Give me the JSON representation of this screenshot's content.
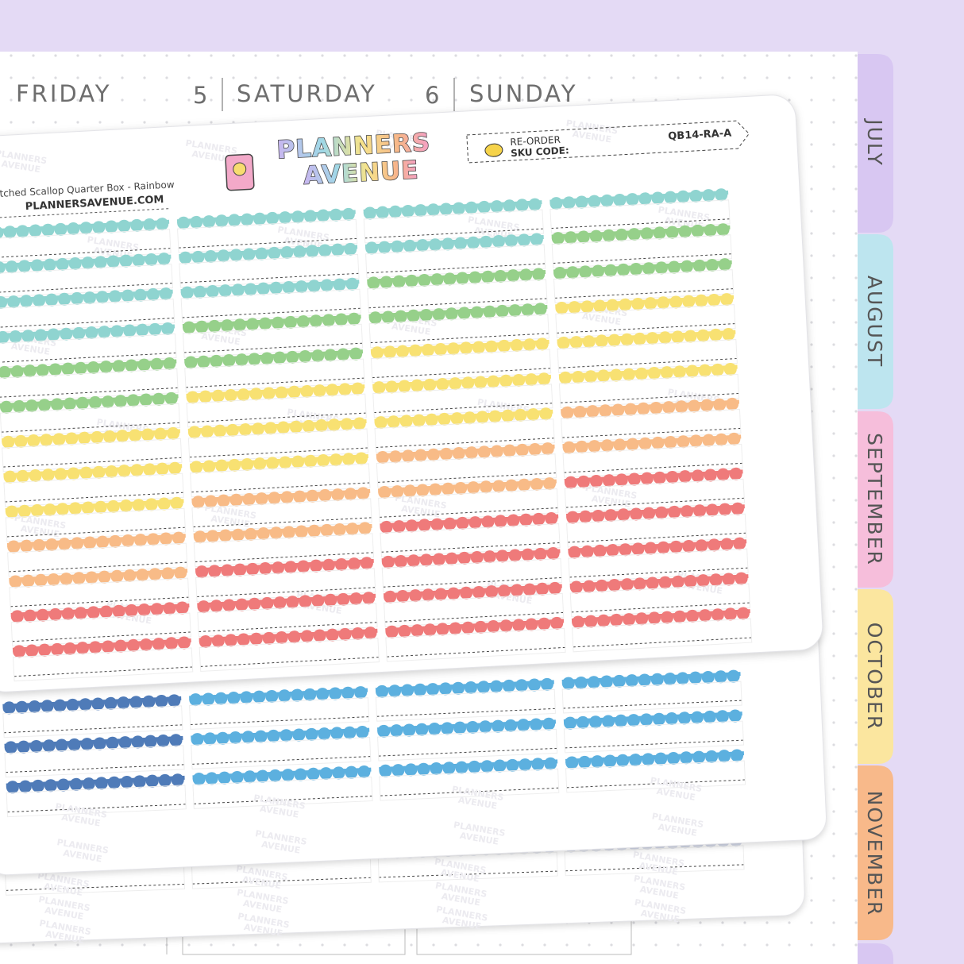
{
  "header": {
    "days": [
      "FRIDAY",
      "SATURDAY",
      "SUNDAY"
    ],
    "day_numbers": [
      "5",
      "6"
    ]
  },
  "tabs": [
    "JULY",
    "AUGUST",
    "SEPTEMBER",
    "OCTOBER",
    "NOVEMBER"
  ],
  "sheet": {
    "product_name": "Stitched Scallop Quarter Box - Rainbow",
    "website": "PLANNERSAVENUE.COM",
    "logo": [
      "PLANNERS",
      "AVENUE"
    ],
    "reorder_label": [
      "RE-ORDER",
      "SKU CODE:"
    ],
    "sku": "QB14-RA-A"
  },
  "watermark": [
    "PLANNERS",
    "AVENUE"
  ]
}
